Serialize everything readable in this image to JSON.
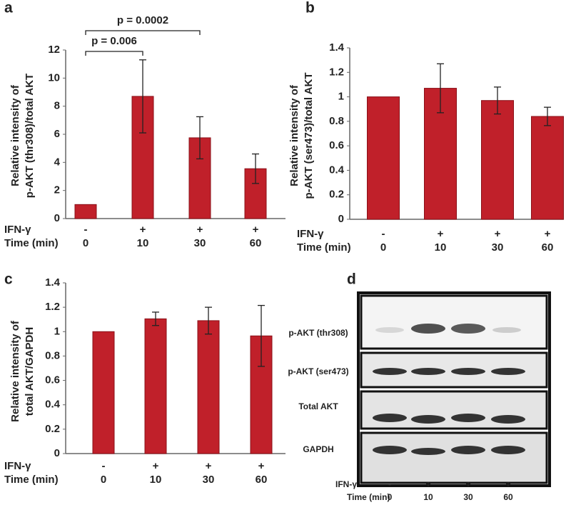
{
  "chart_data": [
    {
      "type": "bar",
      "panel_label": "a",
      "ylabel": [
        "Relative intensity of",
        "p-AKT (thr308)/total AKT"
      ],
      "categories": [
        "0",
        "10",
        "30",
        "60"
      ],
      "ifn_labels": [
        "-",
        "+",
        "+",
        "+"
      ],
      "row_labels": [
        "IFN-γ",
        "Time (min)"
      ],
      "values": [
        1,
        8.7,
        5.75,
        3.55
      ],
      "errors": [
        null,
        2.6,
        1.5,
        1.05
      ],
      "color": "#c0202a",
      "ylim": [
        0,
        12
      ],
      "yticks": [
        0,
        2,
        4,
        6,
        8,
        10,
        12
      ],
      "grid": false,
      "annotations": [
        "p = 0.006",
        "p = 0.0002"
      ]
    },
    {
      "type": "bar",
      "panel_label": "b",
      "ylabel": [
        "Relative intensity of",
        "p-AKT (ser473)/total AKT"
      ],
      "categories": [
        "0",
        "10",
        "30",
        "60"
      ],
      "ifn_labels": [
        "-",
        "+",
        "+",
        "+"
      ],
      "row_labels": [
        "IFN-γ",
        "Time (min)"
      ],
      "values": [
        1,
        1.07,
        0.97,
        0.84
      ],
      "errors": [
        null,
        0.2,
        0.11,
        0.075
      ],
      "color": "#c0202a",
      "ylim": [
        0,
        1.4
      ],
      "yticks": [
        0,
        0.2,
        0.4,
        0.6,
        0.8,
        1,
        1.2,
        1.4
      ],
      "grid": false
    },
    {
      "type": "bar",
      "panel_label": "c",
      "ylabel": [
        "Relative intensity of",
        "total AKT/GAPDH"
      ],
      "categories": [
        "0",
        "10",
        "30",
        "60"
      ],
      "ifn_labels": [
        "-",
        "+",
        "+",
        "+"
      ],
      "row_labels": [
        "IFN-γ",
        "Time (min)"
      ],
      "values": [
        1,
        1.105,
        1.09,
        0.965
      ],
      "errors": [
        null,
        0.055,
        0.11,
        0.25
      ],
      "color": "#c0202a",
      "ylim": [
        0,
        1.4
      ],
      "yticks": [
        0,
        0.2,
        0.4,
        0.6,
        0.8,
        1,
        1.2,
        1.4
      ],
      "grid": false
    }
  ],
  "western_blot": {
    "panel_label": "d",
    "rows": [
      "p-AKT  (thr308)",
      "p-AKT  (ser473)",
      "Total AKT",
      "GAPDH"
    ],
    "row_labels": [
      "IFN-γ",
      "Time (min)"
    ],
    "ifn_labels": [
      "-",
      "+",
      "+",
      "+"
    ],
    "time_labels": [
      "0",
      "10",
      "30",
      "60"
    ]
  }
}
